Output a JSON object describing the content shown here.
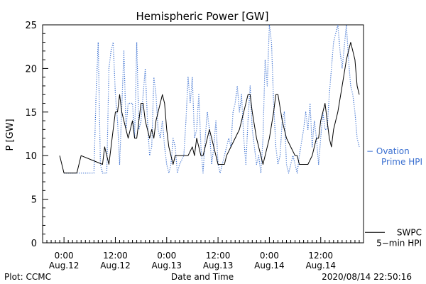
{
  "chart_data": {
    "type": "line",
    "title": "Hemispheric Power [GW]",
    "ylabel": "P [GW]",
    "xlabel": "Date and Time",
    "ylim": [
      0,
      25
    ],
    "yticks": [
      0,
      5,
      10,
      15,
      20,
      25
    ],
    "xlim_hours": [
      -5,
      70
    ],
    "xticks": [
      {
        "hour": 0,
        "line1": "0:00",
        "line2": "Aug.12"
      },
      {
        "hour": 12,
        "line1": "12:00",
        "line2": "Aug.12"
      },
      {
        "hour": 24,
        "line1": "0:00",
        "line2": "Aug.13"
      },
      {
        "hour": 36,
        "line1": "12:00",
        "line2": "Aug.13"
      },
      {
        "hour": 48,
        "line1": "0:00",
        "line2": "Aug.14"
      },
      {
        "hour": 60,
        "line1": "12:00",
        "line2": "Aug.14"
      }
    ],
    "footer_left": "Plot: CCMC",
    "footer_right": "2020/08/14 22:50:16",
    "grid": false,
    "legend_position": "right",
    "series": [
      {
        "name": "SWPC 5-min HPI",
        "legend_line1": "SWPC",
        "legend_line2": "5−min HPI",
        "color": "#000000",
        "style": "solid",
        "points": [
          [
            -1,
            10
          ],
          [
            -0.5,
            9
          ],
          [
            0,
            8
          ],
          [
            3,
            8
          ],
          [
            4,
            10
          ],
          [
            9,
            9
          ],
          [
            9.5,
            11
          ],
          [
            10.5,
            9
          ],
          [
            11.5,
            13
          ],
          [
            12,
            15
          ],
          [
            12.5,
            15
          ],
          [
            13,
            17
          ],
          [
            13.5,
            15
          ],
          [
            14,
            14
          ],
          [
            14.5,
            13
          ],
          [
            15,
            12
          ],
          [
            15.5,
            13
          ],
          [
            16,
            14
          ],
          [
            16.5,
            12
          ],
          [
            17,
            12
          ],
          [
            17.5,
            14
          ],
          [
            18,
            16
          ],
          [
            18.5,
            16
          ],
          [
            19,
            14
          ],
          [
            19.5,
            13
          ],
          [
            20,
            12
          ],
          [
            20.5,
            13
          ],
          [
            21,
            12
          ],
          [
            21.5,
            14
          ],
          [
            22,
            15
          ],
          [
            22.5,
            16
          ],
          [
            23,
            17
          ],
          [
            23.5,
            16
          ],
          [
            24,
            13
          ],
          [
            24.5,
            11
          ],
          [
            25,
            10
          ],
          [
            25.5,
            9
          ],
          [
            26,
            10
          ],
          [
            29,
            10
          ],
          [
            30,
            11
          ],
          [
            30.5,
            10
          ],
          [
            31,
            12
          ],
          [
            31.5,
            11
          ],
          [
            32,
            10
          ],
          [
            32.5,
            10
          ],
          [
            33,
            11
          ],
          [
            34,
            13
          ],
          [
            34.5,
            12
          ],
          [
            35,
            11
          ],
          [
            35.5,
            10
          ],
          [
            36,
            9
          ],
          [
            37.5,
            9
          ],
          [
            38,
            10
          ],
          [
            39,
            11
          ],
          [
            40,
            12
          ],
          [
            41,
            13
          ],
          [
            42,
            15
          ],
          [
            43,
            17
          ],
          [
            43.5,
            17
          ],
          [
            44,
            15
          ],
          [
            45,
            12
          ],
          [
            46,
            10
          ],
          [
            46.5,
            9
          ],
          [
            47,
            10
          ],
          [
            48,
            12
          ],
          [
            49,
            15
          ],
          [
            49.5,
            17
          ],
          [
            50,
            17
          ],
          [
            51,
            14
          ],
          [
            51.5,
            13
          ],
          [
            52,
            12
          ],
          [
            53,
            11
          ],
          [
            54,
            10
          ],
          [
            54.5,
            10
          ],
          [
            55,
            9
          ],
          [
            57,
            9
          ],
          [
            58,
            10
          ],
          [
            59,
            12
          ],
          [
            59.5,
            12
          ],
          [
            60,
            14
          ],
          [
            61,
            16
          ],
          [
            61.5,
            14
          ],
          [
            62,
            12
          ],
          [
            62.5,
            11
          ],
          [
            63,
            13
          ],
          [
            64,
            15
          ],
          [
            65,
            18
          ],
          [
            66,
            21
          ],
          [
            66.5,
            22
          ],
          [
            67,
            23
          ],
          [
            67.5,
            22
          ],
          [
            68,
            21
          ],
          [
            68.5,
            18
          ],
          [
            69,
            17
          ]
        ]
      },
      {
        "name": "Ovation Prime HPI",
        "legend_line1": "− Ovation",
        "legend_line2": "Prime HPI",
        "color": "#3a6fd0",
        "style": "dotted",
        "points": [
          [
            0,
            8
          ],
          [
            7,
            8
          ],
          [
            7.5,
            17
          ],
          [
            8,
            23
          ],
          [
            8.5,
            9
          ],
          [
            9,
            8
          ],
          [
            10,
            8
          ],
          [
            10.5,
            20
          ],
          [
            11,
            22
          ],
          [
            11.5,
            23
          ],
          [
            12,
            17
          ],
          [
            12.5,
            14
          ],
          [
            13,
            9
          ],
          [
            14,
            22
          ],
          [
            14.5,
            13
          ],
          [
            15,
            16
          ],
          [
            16,
            16
          ],
          [
            16.5,
            12
          ],
          [
            17,
            23
          ],
          [
            17.5,
            13
          ],
          [
            18,
            14
          ],
          [
            18.5,
            17
          ],
          [
            19,
            20
          ],
          [
            19.5,
            14
          ],
          [
            20,
            10
          ],
          [
            20.5,
            11
          ],
          [
            21,
            19
          ],
          [
            21.5,
            17
          ],
          [
            22,
            13
          ],
          [
            22.5,
            12
          ],
          [
            23,
            14
          ],
          [
            23.5,
            11
          ],
          [
            24,
            9
          ],
          [
            24.5,
            8
          ],
          [
            25,
            9
          ],
          [
            25.5,
            12
          ],
          [
            26,
            11
          ],
          [
            26.5,
            8
          ],
          [
            27,
            9
          ],
          [
            28,
            10
          ],
          [
            28.5,
            14
          ],
          [
            29,
            19
          ],
          [
            29.5,
            16
          ],
          [
            30,
            19
          ],
          [
            30.5,
            12
          ],
          [
            31,
            13
          ],
          [
            31.5,
            17
          ],
          [
            32,
            11
          ],
          [
            32.5,
            8
          ],
          [
            33,
            12
          ],
          [
            33.5,
            15
          ],
          [
            34,
            13
          ],
          [
            34.5,
            9
          ],
          [
            35,
            11
          ],
          [
            35.5,
            14
          ],
          [
            36,
            9
          ],
          [
            36.5,
            8
          ],
          [
            37,
            9
          ],
          [
            38,
            11
          ],
          [
            38.5,
            12
          ],
          [
            39,
            11
          ],
          [
            39.5,
            15
          ],
          [
            40,
            16
          ],
          [
            40.5,
            18
          ],
          [
            41,
            15
          ],
          [
            41.5,
            17
          ],
          [
            42,
            12
          ],
          [
            42.5,
            9
          ],
          [
            43,
            14
          ],
          [
            43.5,
            18
          ],
          [
            44,
            13
          ],
          [
            44.5,
            11
          ],
          [
            45,
            9
          ],
          [
            45.5,
            10
          ],
          [
            46,
            8
          ],
          [
            46.5,
            12
          ],
          [
            47,
            21
          ],
          [
            47.5,
            18
          ],
          [
            48,
            25
          ],
          [
            48.5,
            23
          ],
          [
            49,
            16
          ],
          [
            49.5,
            11
          ],
          [
            50,
            9
          ],
          [
            50.5,
            10
          ],
          [
            51,
            14
          ],
          [
            51.5,
            15
          ],
          [
            52,
            9
          ],
          [
            52.5,
            8
          ],
          [
            53,
            9
          ],
          [
            53.5,
            10
          ],
          [
            54,
            9
          ],
          [
            54.5,
            8
          ],
          [
            55,
            10
          ],
          [
            56,
            13
          ],
          [
            56.5,
            15
          ],
          [
            57,
            13
          ],
          [
            57.5,
            16
          ],
          [
            58,
            11
          ],
          [
            58.5,
            14
          ],
          [
            59,
            12
          ],
          [
            59.5,
            9
          ],
          [
            60,
            12
          ],
          [
            60.5,
            15
          ],
          [
            61,
            13
          ],
          [
            61.5,
            13
          ],
          [
            62,
            17
          ],
          [
            62.5,
            20
          ],
          [
            63,
            23
          ],
          [
            63.5,
            24
          ],
          [
            64,
            25
          ],
          [
            64.5,
            22
          ],
          [
            65,
            20
          ],
          [
            66,
            25
          ],
          [
            66.5,
            21
          ],
          [
            67,
            18
          ],
          [
            67.5,
            17
          ],
          [
            68,
            15
          ],
          [
            68.5,
            12
          ],
          [
            69,
            11
          ]
        ]
      }
    ]
  }
}
